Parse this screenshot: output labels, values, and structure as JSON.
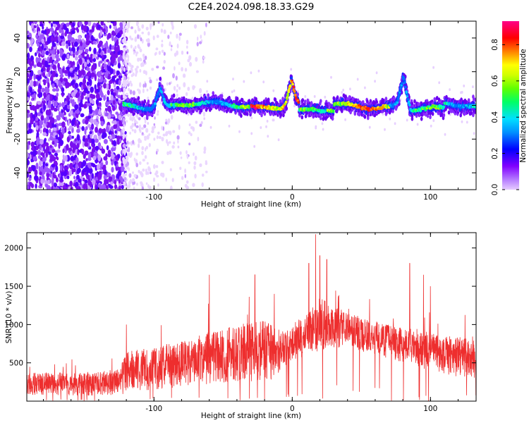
{
  "title": "C2E4.2024.098.18.33.G29",
  "chart_data": [
    {
      "type": "heatmap",
      "name": "spectrogram",
      "xlabel": "Height of straight line (km)",
      "ylabel": "Frequency (Hz)",
      "xlim": [
        -192,
        133
      ],
      "ylim": [
        -50,
        50
      ],
      "xticks": [
        -100,
        0,
        100
      ],
      "yticks": [
        -40,
        -20,
        0,
        20,
        40
      ],
      "grid": false,
      "colorbar": {
        "label": "Normalized spectral amplitude",
        "range": [
          0,
          0.93
        ],
        "ticks": [
          0.0,
          0.2,
          0.4,
          0.6,
          0.8
        ],
        "colormap": [
          "#e6ccff",
          "#8000ff",
          "#0000ff",
          "#00c8ff",
          "#00ff66",
          "#a0ff00",
          "#ffff00",
          "#ff8000",
          "#ff0000",
          "#ff0080"
        ]
      },
      "features": {
        "noise_region_end_km": -122,
        "band_start_km": -122,
        "peaks": [
          {
            "x_km": -96,
            "freq_hz": 12
          },
          {
            "x_km": -1,
            "freq_hz": 15
          },
          {
            "x_km": 80,
            "freq_hz": 17
          }
        ]
      }
    },
    {
      "type": "line",
      "name": "snr",
      "xlabel": "Height of straight line (km)",
      "ylabel": "SNR (10 * v/v)",
      "xlim": [
        -192,
        133
      ],
      "ylim": [
        0,
        2200
      ],
      "xticks": [
        -100,
        0,
        100
      ],
      "yticks": [
        500,
        1000,
        1500,
        2000
      ],
      "grid": false,
      "color": "#ee2e2e",
      "envelope_x": [
        -192,
        -150,
        -125,
        -120,
        -100,
        -80,
        -60,
        -40,
        -20,
        -10,
        -5,
        0,
        10,
        20,
        30,
        40,
        50,
        60,
        70,
        80,
        90,
        100,
        110,
        120,
        133
      ],
      "envelope_lo": [
        80,
        70,
        80,
        100,
        150,
        180,
        220,
        250,
        250,
        300,
        450,
        500,
        600,
        650,
        700,
        700,
        650,
        600,
        550,
        500,
        450,
        400,
        350,
        320,
        300
      ],
      "envelope_hi": [
        380,
        370,
        420,
        650,
        700,
        800,
        900,
        1000,
        1050,
        950,
        900,
        1000,
        1150,
        1350,
        1250,
        1150,
        1100,
        1050,
        1000,
        950,
        950,
        900,
        850,
        850,
        800
      ],
      "spikes": [
        {
          "x": -120,
          "y": 1000
        },
        {
          "x": -60,
          "y": 1650
        },
        {
          "x": -27,
          "y": 1650
        },
        {
          "x": -13,
          "y": 1400
        },
        {
          "x": 12,
          "y": 1800
        },
        {
          "x": 17,
          "y": 2180
        },
        {
          "x": 20,
          "y": 1900
        },
        {
          "x": 25,
          "y": 1850
        },
        {
          "x": 85,
          "y": 1800
        },
        {
          "x": 95,
          "y": 1650
        },
        {
          "x": 100,
          "y": 1500
        }
      ]
    }
  ]
}
